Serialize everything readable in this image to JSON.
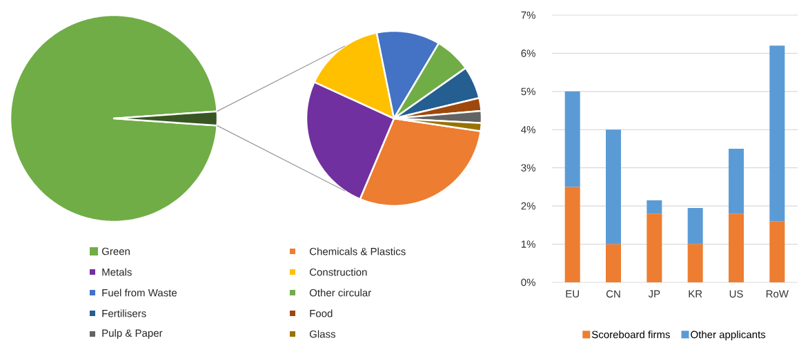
{
  "chart_data": [
    {
      "type": "pie",
      "categories": [
        "Green",
        null
      ],
      "values": [
        97.8,
        2.2
      ],
      "colors": [
        "#70ad47",
        "#375623"
      ],
      "legend": "bottom"
    },
    {
      "type": "pie",
      "categories": [
        "Chemicals & Plastics",
        "Metals",
        "Construction",
        "Fuel from Waste",
        "Other circular",
        "Fertilisers",
        "Food",
        "Pulp & Paper",
        "Glass"
      ],
      "values": [
        29,
        25.5,
        15,
        11.7,
        6.7,
        6,
        2.4,
        2.2,
        1.5
      ],
      "colors": [
        "#ed7d31",
        "#7030a0",
        "#ffc000",
        "#4472c4",
        "#70ad47",
        "#255e91",
        "#9e480e",
        "#636363",
        "#997300"
      ],
      "legend": "bottom"
    },
    {
      "type": "bar",
      "categories": [
        "EU",
        "CN",
        "JP",
        "KR",
        "US",
        "RoW"
      ],
      "stacked": true,
      "series": [
        {
          "name": "Scoreboard firms",
          "color": "#ed7d31",
          "values": [
            2.5,
            1.0,
            1.8,
            1.0,
            1.8,
            1.6
          ]
        },
        {
          "name": "Other applicants",
          "color": "#5b9bd5",
          "values": [
            2.5,
            3.0,
            0.35,
            0.95,
            1.7,
            4.6
          ]
        }
      ],
      "ylim": [
        0,
        7
      ],
      "yticks": [
        {
          "value": 0,
          "label": "0%"
        },
        {
          "value": 1,
          "label": "1%"
        },
        {
          "value": 2,
          "label": "2%"
        },
        {
          "value": 3,
          "label": "3%"
        },
        {
          "value": 4,
          "label": "4%"
        },
        {
          "value": 5,
          "label": "5%"
        },
        {
          "value": 6,
          "label": "6%"
        },
        {
          "value": 7,
          "label": "7%"
        }
      ],
      "grid": "y",
      "legend": "bottom"
    }
  ]
}
